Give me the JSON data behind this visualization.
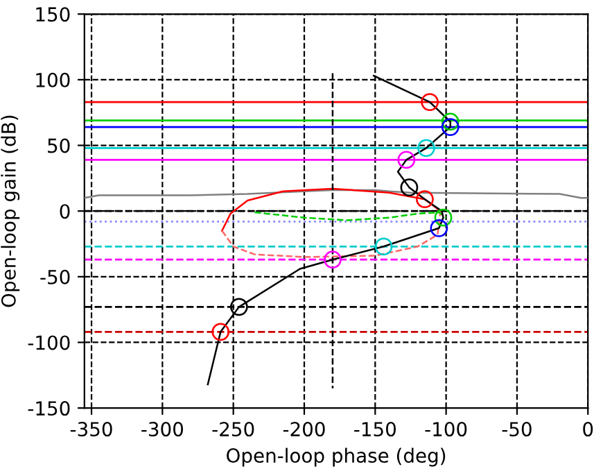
{
  "chart_data": {
    "type": "line",
    "xlabel": "Open-loop phase (deg)",
    "ylabel": "Open-loop gain (dB)",
    "xlim": [
      -355,
      0
    ],
    "ylim": [
      -150,
      150
    ],
    "xticks": [
      -350,
      -300,
      -250,
      -200,
      -150,
      -100,
      -50,
      0
    ],
    "yticks": [
      -150,
      -100,
      -50,
      0,
      50,
      100,
      150
    ],
    "grid": true,
    "series": [
      {
        "color": "#808080",
        "line_style": "solid",
        "marker": "none",
        "x": [
          -355,
          -345,
          -280,
          -240,
          -200,
          -180,
          -150,
          -140,
          -125,
          -20,
          -5,
          0
        ],
        "values": [
          10,
          12,
          12,
          13,
          15,
          16,
          16,
          15,
          14,
          13,
          10,
          10
        ]
      },
      {
        "color": "#ff0000",
        "line_style": "solid",
        "marker": "none",
        "x": [
          -104,
          -115,
          -140,
          -180,
          -215,
          -240,
          -252,
          -258
        ],
        "values": [
          0,
          9,
          14,
          17,
          15,
          8,
          -2,
          -15
        ]
      },
      {
        "color": "#ff6666",
        "line_style": "dashed",
        "marker": "none",
        "x": [
          -258,
          -250,
          -235,
          -200,
          -150,
          -120,
          -106,
          -104
        ],
        "values": [
          -15,
          -27,
          -33,
          -35,
          -34,
          -27,
          -18,
          0
        ]
      },
      {
        "color": "#00cc00",
        "line_style": "dashed",
        "marker": "none",
        "x": [
          -235,
          -200,
          -170,
          -140,
          -120,
          -105,
          -100
        ],
        "values": [
          -1,
          -5,
          -7,
          -5,
          -2,
          -1,
          -5
        ]
      },
      {
        "color": "#000000",
        "line_style": "solid",
        "marker": "none",
        "x": [
          -151,
          -111.5,
          -97,
          -97,
          -114,
          -128,
          -134,
          -126,
          -115,
          -103,
          -102,
          -105,
          -144,
          -180,
          -203,
          -246,
          -259,
          -268
        ],
        "values": [
          103,
          83,
          68,
          64,
          48,
          39,
          30,
          18,
          9,
          0,
          -5,
          -13,
          -27,
          -37,
          -44,
          -73,
          -92,
          -132
        ]
      },
      {
        "color": "#000000",
        "line_style": "dashed",
        "marker": "none",
        "x": [
          -180,
          -180
        ],
        "values": [
          105,
          -135
        ]
      },
      {
        "type": "scatter",
        "marker": "circle",
        "x": [
          -111.5,
          -97,
          -97,
          -114,
          -128,
          -126,
          -115,
          -102,
          -105,
          -144,
          -180,
          -246,
          -259
        ],
        "values": [
          83,
          68,
          64,
          48,
          39,
          18,
          9,
          -5,
          -13,
          -27,
          -37,
          -73,
          -92
        ],
        "colors": [
          "#ff0000",
          "#00cc00",
          "#0000ff",
          "#00cccc",
          "#ff00ff",
          "#000000",
          "#ff0000",
          "#00cc00",
          "#0000ff",
          "#00cccc",
          "#ff00ff",
          "#000000",
          "#ff0000"
        ]
      }
    ],
    "ref_lines": [
      {
        "axis": "y",
        "value": 83,
        "color": "#ff0000",
        "line_style": "solid"
      },
      {
        "axis": "y",
        "value": 69,
        "color": "#00cc00",
        "line_style": "solid"
      },
      {
        "axis": "y",
        "value": 64,
        "color": "#0000ff",
        "line_style": "solid"
      },
      {
        "axis": "y",
        "value": 48,
        "color": "#00cccc",
        "line_style": "solid"
      },
      {
        "axis": "y",
        "value": 39,
        "color": "#ff00ff",
        "line_style": "solid"
      },
      {
        "axis": "y",
        "value": 0,
        "color": "#000000",
        "line_style": "dashed"
      },
      {
        "axis": "y",
        "value": -8,
        "color": "#8888ff",
        "line_style": "dotted"
      },
      {
        "axis": "y",
        "value": -27,
        "color": "#00cccc",
        "line_style": "dashed"
      },
      {
        "axis": "y",
        "value": -37,
        "color": "#ff00ff",
        "line_style": "dashed"
      },
      {
        "axis": "y",
        "value": -73,
        "color": "#000000",
        "line_style": "dashed"
      },
      {
        "axis": "y",
        "value": -92,
        "color": "#cc0000",
        "line_style": "dashed"
      }
    ]
  }
}
